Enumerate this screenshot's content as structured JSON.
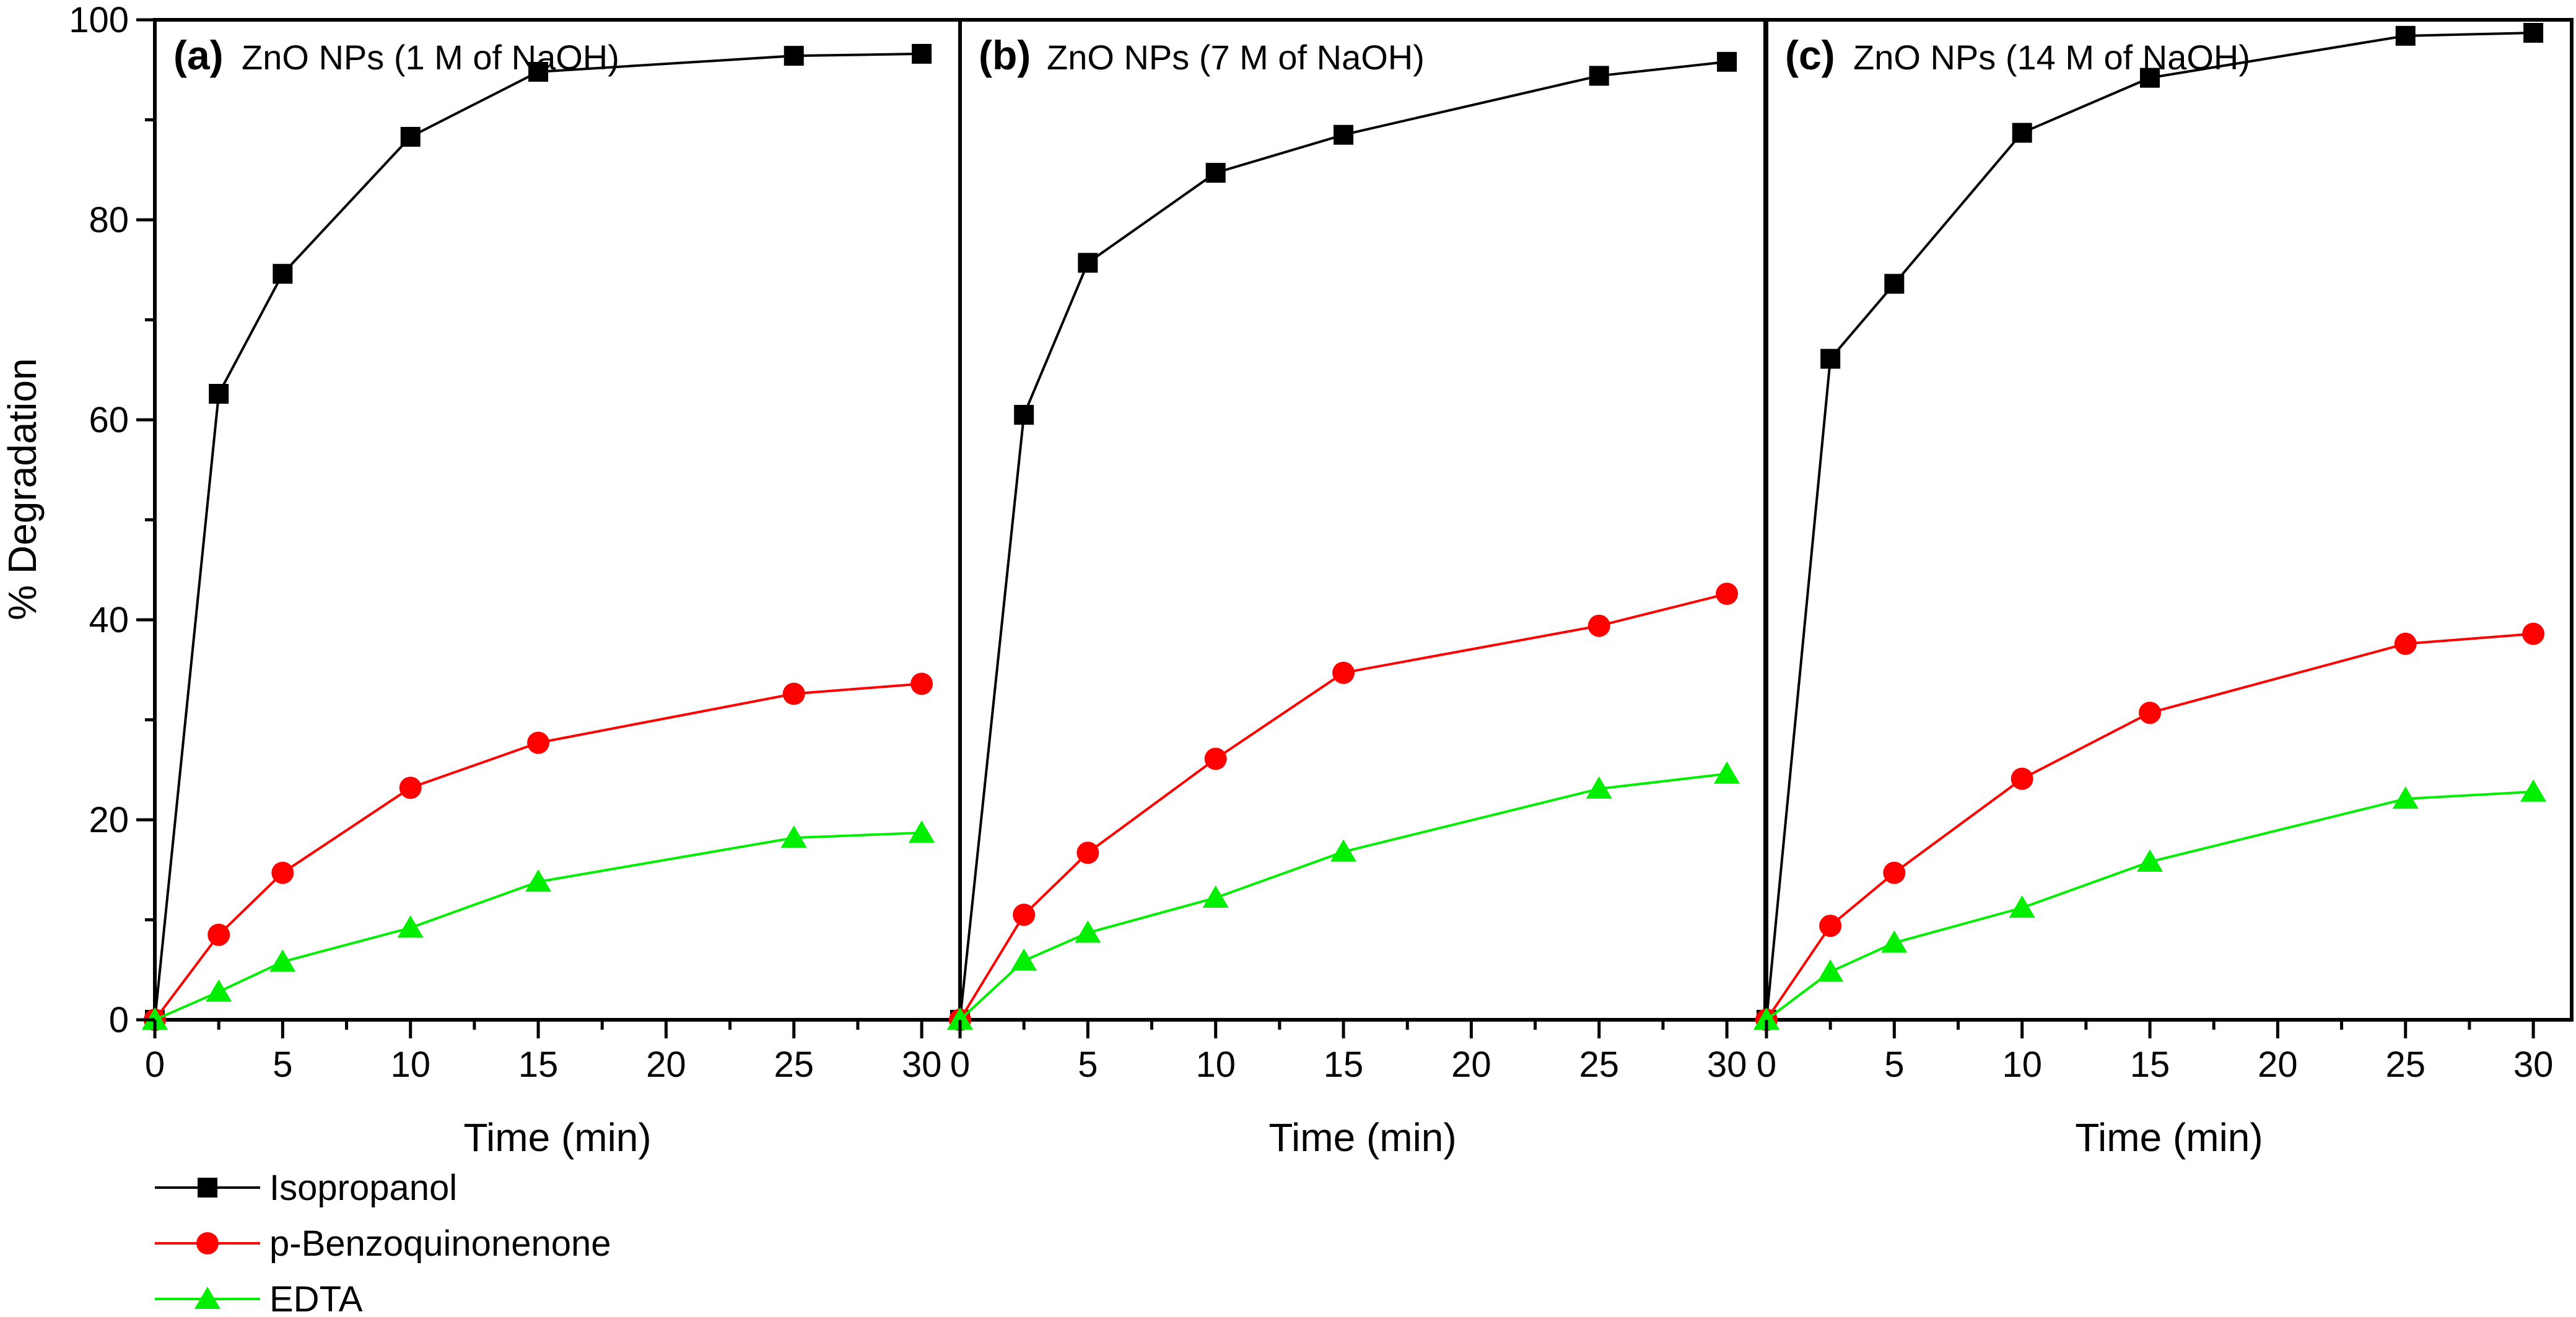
{
  "chart_data": {
    "type": "line",
    "ylabel": "% Degradation",
    "xlabel": "Time (min)",
    "xlim": [
      0,
      31.5
    ],
    "ylim": [
      0,
      100
    ],
    "x_ticks": [
      0,
      5,
      10,
      15,
      20,
      25,
      30
    ],
    "y_ticks": [
      0,
      20,
      40,
      60,
      80,
      100
    ],
    "x": [
      0,
      2.5,
      5,
      10,
      15,
      25,
      30
    ],
    "series_styles": [
      {
        "name": "Isopropanol",
        "color": "#000000",
        "marker": "square"
      },
      {
        "name": "p-Benzoquinonenone",
        "color": "#ff0000",
        "marker": "circle"
      },
      {
        "name": "EDTA",
        "color": "#00ee00",
        "marker": "triangle"
      }
    ],
    "panels": [
      {
        "tag": "(a)",
        "title": "ZnO NPs (1 M of NaOH)",
        "series": [
          {
            "name": "Isopropanol",
            "values": [
              0,
              62.6,
              74.6,
              88.3,
              94.8,
              96.4,
              96.6
            ]
          },
          {
            "name": "p-Benzoquinonenone",
            "values": [
              0,
              8.5,
              14.7,
              23.2,
              27.7,
              32.6,
              33.6
            ]
          },
          {
            "name": "EDTA",
            "values": [
              0,
              2.8,
              5.8,
              9.2,
              13.8,
              18.2,
              18.7
            ]
          }
        ]
      },
      {
        "tag": "(b)",
        "title": "ZnO NPs (7 M of NaOH)",
        "series": [
          {
            "name": "Isopropanol",
            "values": [
              0,
              60.5,
              75.7,
              84.7,
              88.5,
              94.4,
              95.8
            ]
          },
          {
            "name": "p-Benzoquinonenone",
            "values": [
              0,
              10.5,
              16.7,
              26.1,
              34.7,
              39.4,
              42.6
            ]
          },
          {
            "name": "EDTA",
            "values": [
              0,
              5.9,
              8.7,
              12.2,
              16.8,
              23.1,
              24.6
            ]
          }
        ]
      },
      {
        "tag": "(c)",
        "title": "ZnO NPs (14 M of NaOH)",
        "series": [
          {
            "name": "Isopropanol",
            "values": [
              0,
              66.1,
              73.6,
              88.7,
              94.2,
              98.4,
              98.7
            ]
          },
          {
            "name": "p-Benzoquinonenone",
            "values": [
              0,
              9.4,
              14.7,
              24.1,
              30.7,
              37.6,
              38.6
            ]
          },
          {
            "name": "EDTA",
            "values": [
              0,
              4.8,
              7.7,
              11.2,
              15.8,
              22.1,
              22.8
            ]
          }
        ]
      }
    ],
    "legend": {
      "placement": "bottom-left",
      "entries": [
        "Isopropanol",
        "p-Benzoquinonenone",
        "EDTA"
      ]
    }
  }
}
